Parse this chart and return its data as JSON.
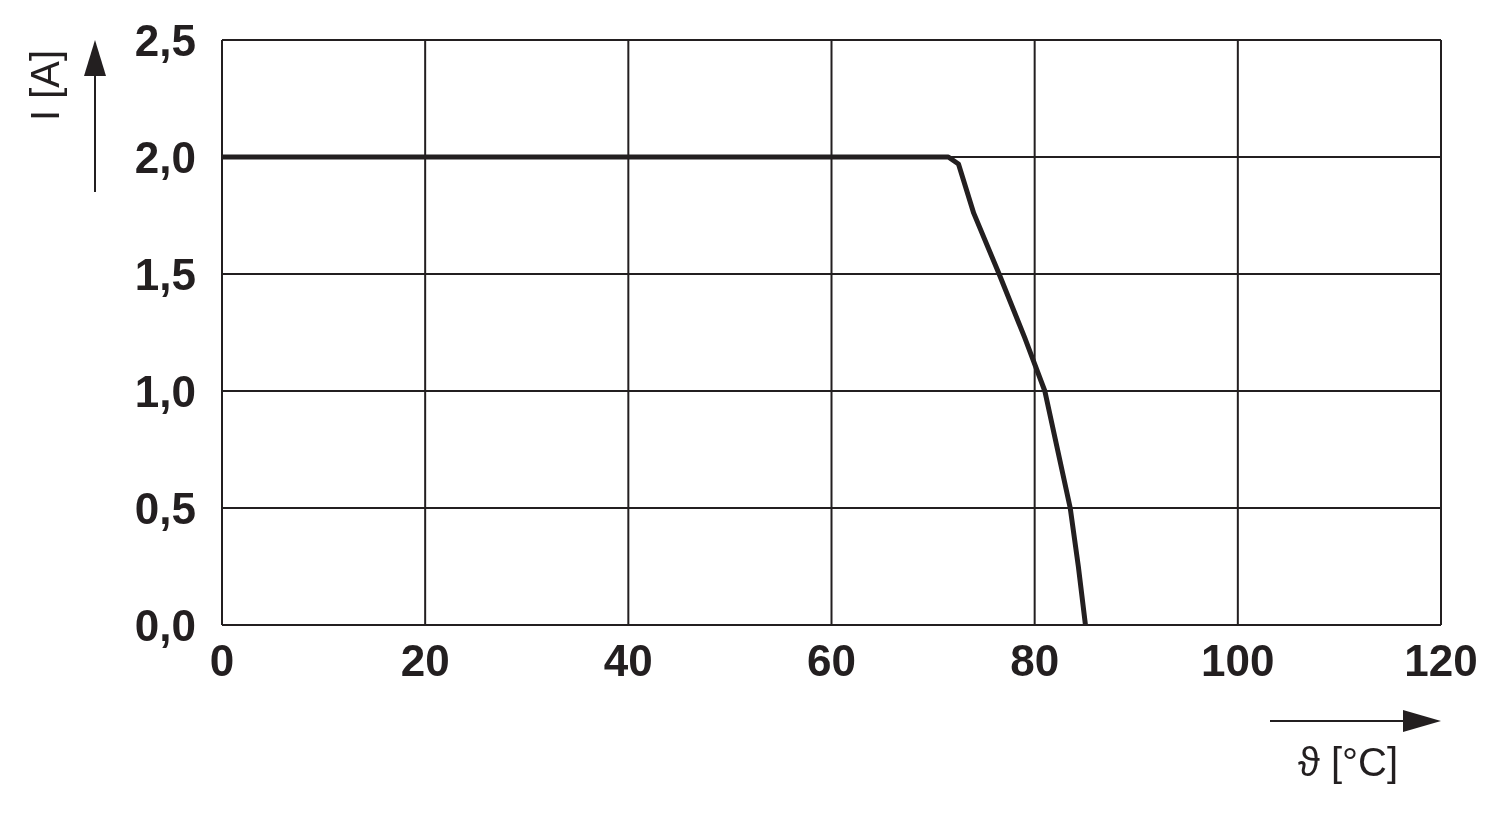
{
  "chart_data": {
    "type": "line",
    "xlabel": "ϑ [°C]",
    "ylabel": "I [A]",
    "x": [
      0,
      71.5,
      72.5,
      74,
      76.5,
      79,
      81,
      83.5,
      84.3,
      85
    ],
    "series": [
      {
        "color": "#231f20",
        "values": [
          2.0,
          2.0,
          1.97,
          1.76,
          1.5,
          1.23,
          1.0,
          0.5,
          0.25,
          0
        ]
      }
    ],
    "xlim": [
      0,
      120
    ],
    "xticks": [
      0,
      20,
      40,
      60,
      80,
      100,
      120
    ],
    "ylim": [
      0,
      2.5
    ],
    "yticks": [
      {
        "value": 0,
        "label": "0,0"
      },
      {
        "value": 0.5,
        "label": "0,5"
      },
      {
        "value": 1,
        "label": "1,0"
      },
      {
        "value": 1.5,
        "label": "1,5"
      },
      {
        "value": 2,
        "label": "2,0"
      },
      {
        "value": 2.5,
        "label": "2,5"
      }
    ],
    "grid": true,
    "legend": false,
    "marker": "none",
    "line_style": "solid"
  }
}
